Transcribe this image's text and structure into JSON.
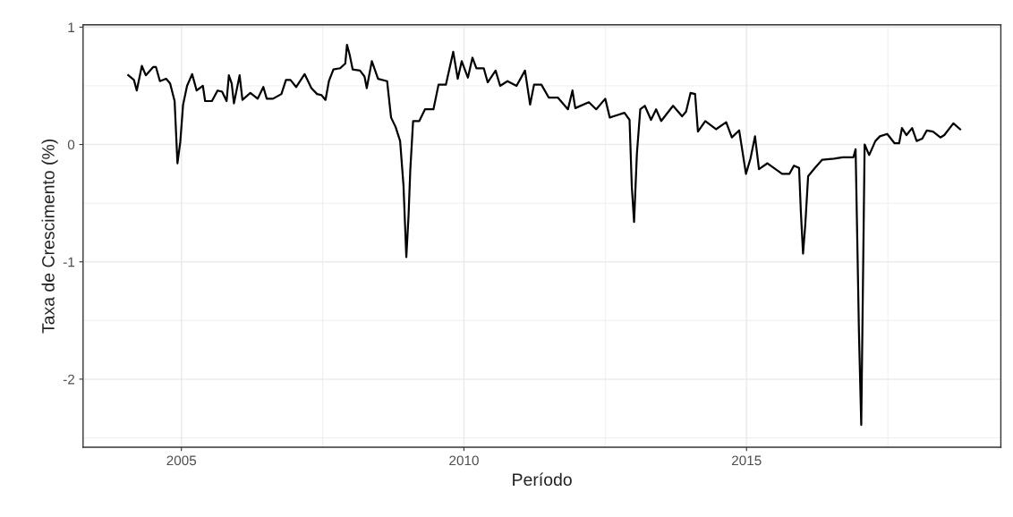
{
  "chart_data": {
    "type": "line",
    "xlabel": "Período",
    "ylabel": "Taxa de Crescimento (%)",
    "xlim": [
      2003.26,
      2019.5
    ],
    "xticks": [
      2005,
      2010,
      2015
    ],
    "ylim": [
      -2.58,
      1.02
    ],
    "yticks": [
      -2,
      -1,
      0,
      1
    ],
    "grid": true,
    "marker": "none",
    "line_style": "solid",
    "series": [
      {
        "color": "#000000",
        "x": [
          2004.06,
          2004.16,
          2004.21,
          2004.3,
          2004.37,
          2004.5,
          2004.55,
          2004.62,
          2004.73,
          2004.8,
          2004.88,
          2004.93,
          2004.98,
          2005.03,
          2005.1,
          2005.19,
          2005.27,
          2005.38,
          2005.42,
          2005.54,
          2005.64,
          2005.72,
          2005.8,
          2005.84,
          2005.89,
          2005.93,
          2006.03,
          2006.08,
          2006.22,
          2006.35,
          2006.45,
          2006.51,
          2006.62,
          2006.77,
          2006.85,
          2006.93,
          2007.03,
          2007.18,
          2007.3,
          2007.4,
          2007.48,
          2007.55,
          2007.61,
          2007.69,
          2007.81,
          2007.9,
          2007.93,
          2007.98,
          2008.03,
          2008.16,
          2008.24,
          2008.28,
          2008.37,
          2008.48,
          2008.64,
          2008.71,
          2008.79,
          2008.87,
          2008.93,
          2008.98,
          2009.02,
          2009.05,
          2009.1,
          2009.21,
          2009.31,
          2009.46,
          2009.55,
          2009.68,
          2009.81,
          2009.89,
          2009.96,
          2010.07,
          2010.15,
          2010.22,
          2010.35,
          2010.42,
          2010.56,
          2010.64,
          2010.77,
          2010.93,
          2011.08,
          2011.17,
          2011.24,
          2011.37,
          2011.5,
          2011.66,
          2011.84,
          2011.92,
          2011.97,
          2012.21,
          2012.34,
          2012.5,
          2012.58,
          2012.71,
          2012.84,
          2012.93,
          2012.97,
          2013.01,
          2013.06,
          2013.12,
          2013.2,
          2013.31,
          2013.4,
          2013.49,
          2013.7,
          2013.86,
          2013.93,
          2014.01,
          2014.09,
          2014.14,
          2014.27,
          2014.46,
          2014.64,
          2014.74,
          2014.87,
          2014.99,
          2015.07,
          2015.15,
          2015.22,
          2015.37,
          2015.63,
          2015.76,
          2015.84,
          2015.93,
          2015.96,
          2016.0,
          2016.04,
          2016.09,
          2016.21,
          2016.34,
          2016.55,
          2016.7,
          2016.89,
          2016.93,
          2016.96,
          2016.99,
          2017.03,
          2017.06,
          2017.09,
          2017.17,
          2017.28,
          2017.36,
          2017.49,
          2017.62,
          2017.7,
          2017.75,
          2017.83,
          2017.93,
          2018.01,
          2018.11,
          2018.19,
          2018.3,
          2018.43,
          2018.5,
          2018.66,
          2018.78
        ],
        "values": [
          0.59,
          0.55,
          0.46,
          0.67,
          0.59,
          0.66,
          0.66,
          0.54,
          0.56,
          0.52,
          0.37,
          -0.16,
          0.02,
          0.34,
          0.5,
          0.6,
          0.46,
          0.5,
          0.37,
          0.37,
          0.46,
          0.45,
          0.37,
          0.59,
          0.52,
          0.35,
          0.59,
          0.38,
          0.44,
          0.39,
          0.49,
          0.39,
          0.39,
          0.43,
          0.55,
          0.55,
          0.49,
          0.6,
          0.48,
          0.43,
          0.42,
          0.38,
          0.54,
          0.64,
          0.65,
          0.69,
          0.85,
          0.76,
          0.64,
          0.63,
          0.58,
          0.48,
          0.71,
          0.56,
          0.54,
          0.23,
          0.15,
          0.03,
          -0.35,
          -0.96,
          -0.6,
          -0.22,
          0.2,
          0.2,
          0.3,
          0.3,
          0.51,
          0.51,
          0.79,
          0.56,
          0.71,
          0.57,
          0.74,
          0.65,
          0.65,
          0.53,
          0.63,
          0.5,
          0.54,
          0.5,
          0.63,
          0.34,
          0.51,
          0.51,
          0.4,
          0.4,
          0.3,
          0.46,
          0.31,
          0.36,
          0.3,
          0.39,
          0.23,
          0.25,
          0.27,
          0.21,
          -0.36,
          -0.66,
          -0.08,
          0.3,
          0.33,
          0.21,
          0.3,
          0.2,
          0.33,
          0.24,
          0.28,
          0.44,
          0.43,
          0.11,
          0.2,
          0.13,
          0.19,
          0.06,
          0.12,
          -0.25,
          -0.12,
          0.07,
          -0.21,
          -0.16,
          -0.25,
          -0.25,
          -0.18,
          -0.2,
          -0.56,
          -0.93,
          -0.68,
          -0.27,
          -0.2,
          -0.13,
          -0.12,
          -0.11,
          -0.11,
          -0.04,
          -0.82,
          -1.62,
          -2.39,
          -1.19,
          0.0,
          -0.09,
          0.03,
          0.07,
          0.09,
          0.01,
          0.01,
          0.14,
          0.08,
          0.14,
          0.03,
          0.05,
          0.12,
          0.11,
          0.06,
          0.08,
          0.18,
          0.13
        ]
      }
    ]
  }
}
